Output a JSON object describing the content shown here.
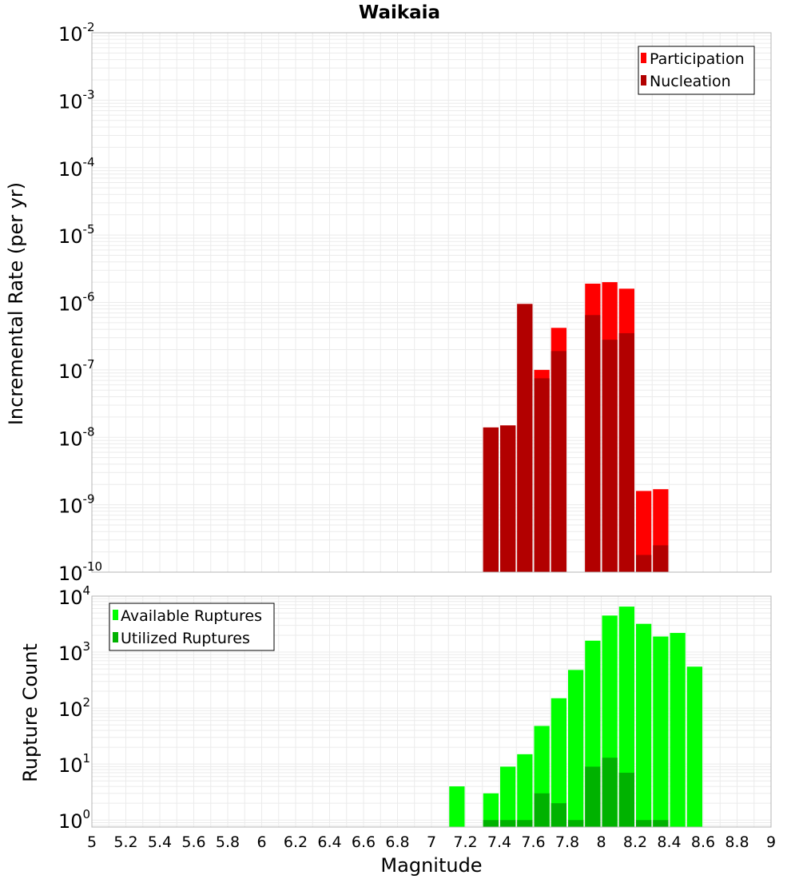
{
  "chart_data": [
    {
      "type": "bar",
      "title": "Waikaia",
      "ylabel": "Incremental Rate (per yr)",
      "xlabel": "",
      "y_scale": "log",
      "ylim": [
        1e-10,
        0.01
      ],
      "xlim": [
        5,
        9
      ],
      "grid": true,
      "legend_position": "top-right",
      "x": [
        7.35,
        7.45,
        7.55,
        7.65,
        7.75,
        7.95,
        8.05,
        8.15,
        8.25,
        8.35
      ],
      "series": [
        {
          "name": "Participation",
          "color": "#ff0000",
          "values": [
            1.4e-08,
            1.5e-08,
            9.5e-07,
            1e-07,
            4.2e-07,
            1.9e-06,
            2e-06,
            1.6e-06,
            1.6e-09,
            1.7e-09
          ]
        },
        {
          "name": "Nucleation",
          "color": "#b20000",
          "values": [
            1.4e-08,
            1.5e-08,
            9.5e-07,
            7.5e-08,
            1.9e-07,
            6.5e-07,
            2.8e-07,
            3.5e-07,
            1.8e-10,
            2.5e-10
          ]
        }
      ]
    },
    {
      "type": "bar",
      "title": "",
      "ylabel": "Rupture Count",
      "xlabel": "Magnitude",
      "y_scale": "log",
      "ylim": [
        0.75,
        10000
      ],
      "xlim": [
        5,
        9
      ],
      "grid": true,
      "legend_position": "top-left",
      "x": [
        7.15,
        7.35,
        7.45,
        7.55,
        7.65,
        7.75,
        7.85,
        7.95,
        8.05,
        8.15,
        8.25,
        8.35,
        8.45,
        8.55
      ],
      "series": [
        {
          "name": "Available Ruptures",
          "color": "#00ff00",
          "values": [
            4,
            3,
            9,
            15,
            48,
            150,
            480,
            1600,
            4500,
            6500,
            3200,
            1900,
            2200,
            550
          ]
        },
        {
          "name": "Utilized Ruptures",
          "color": "#00b200",
          "values": [
            0,
            1,
            1,
            1,
            3,
            2,
            1,
            9,
            13,
            7,
            1,
            1,
            0,
            0
          ]
        }
      ]
    }
  ],
  "x_ticks": [
    "5",
    "5.2",
    "5.4",
    "5.6",
    "5.8",
    "6",
    "6.2",
    "6.4",
    "6.6",
    "6.8",
    "7",
    "7.2",
    "7.4",
    "7.6",
    "7.8",
    "8",
    "8.2",
    "8.4",
    "8.6",
    "8.8",
    "9"
  ],
  "top_y_ticks": [
    {
      "base": "10",
      "exp": "-2"
    },
    {
      "base": "10",
      "exp": "-3"
    },
    {
      "base": "10",
      "exp": "-4"
    },
    {
      "base": "10",
      "exp": "-5"
    },
    {
      "base": "10",
      "exp": "-6"
    },
    {
      "base": "10",
      "exp": "-7"
    },
    {
      "base": "10",
      "exp": "-8"
    },
    {
      "base": "10",
      "exp": "-9"
    },
    {
      "base": "10",
      "exp": "-10"
    }
  ],
  "bottom_y_ticks": [
    {
      "base": "10",
      "exp": "4"
    },
    {
      "base": "10",
      "exp": "3"
    },
    {
      "base": "10",
      "exp": "2"
    },
    {
      "base": "10",
      "exp": "1"
    },
    {
      "base": "10",
      "exp": "0"
    }
  ],
  "colors": {
    "grid": "#ebebeb",
    "frame": "#b4b4b4"
  }
}
